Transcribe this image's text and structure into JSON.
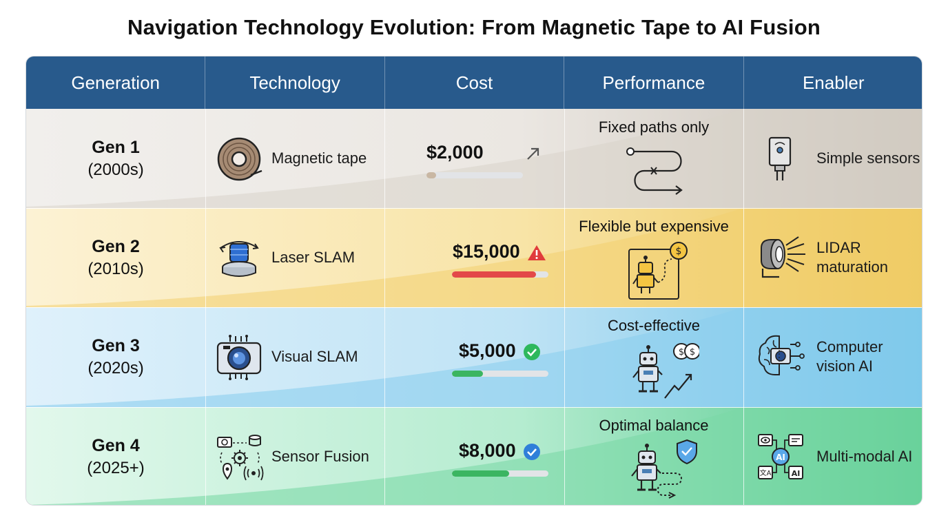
{
  "title": "Navigation Technology Evolution: From Magnetic Tape to AI Fusion",
  "headers": [
    "Generation",
    "Technology",
    "Cost",
    "Performance",
    "Enabler"
  ],
  "rows": [
    {
      "generation": "Gen 1",
      "era": "(2000s)",
      "technology": "Magnetic tape",
      "technology_icon": "magnetic-tape-icon",
      "cost": "$2,000",
      "cost_icon": "trend-arrow-icon",
      "cost_level": 0.1,
      "performance": "Fixed paths only",
      "performance_icon": "fixed-path-icon",
      "enabler": "Simple sensors",
      "enabler_icon": "simple-sensor-icon",
      "color": "#e8e6e3"
    },
    {
      "generation": "Gen 2",
      "era": "(2010s)",
      "technology": "Laser SLAM",
      "technology_icon": "laser-scanner-icon",
      "cost": "$15,000",
      "cost_icon": "warning-icon",
      "cost_level": 0.87,
      "performance": "Flexible but expensive",
      "performance_icon": "robot-dollar-icon",
      "enabler": "LIDAR maturation",
      "enabler_icon": "lidar-icon",
      "color": "#f3d77c"
    },
    {
      "generation": "Gen 3",
      "era": "(2020s)",
      "technology": "Visual SLAM",
      "technology_icon": "camera-chip-icon",
      "cost": "$5,000",
      "cost_icon": "check-circle-icon",
      "cost_level": 0.32,
      "performance": "Cost-effective",
      "performance_icon": "robot-savings-icon",
      "enabler": "Computer vision AI",
      "enabler_icon": "brain-camera-icon",
      "color": "#76c6e8"
    },
    {
      "generation": "Gen 4",
      "era": "(2025+)",
      "technology": "Sensor Fusion",
      "technology_icon": "sensor-fusion-icon",
      "cost": "$8,000",
      "cost_icon": "check-badge-icon",
      "cost_level": 0.59,
      "performance": "Optimal balance",
      "performance_icon": "robot-shield-icon",
      "enabler": "Multi-modal AI",
      "enabler_icon": "multimodal-ai-icon",
      "color": "#52c98b"
    }
  ],
  "colors": {
    "header": "#285a8c",
    "bar_gen1": "#c9b7a3",
    "bar_gen2": "#e34848",
    "bar_gen3": "#3bb561",
    "bar_gen4": "#3bb561",
    "check": "#2eb85c",
    "badge": "#2f7fd9",
    "warning": "#e03b3b"
  }
}
